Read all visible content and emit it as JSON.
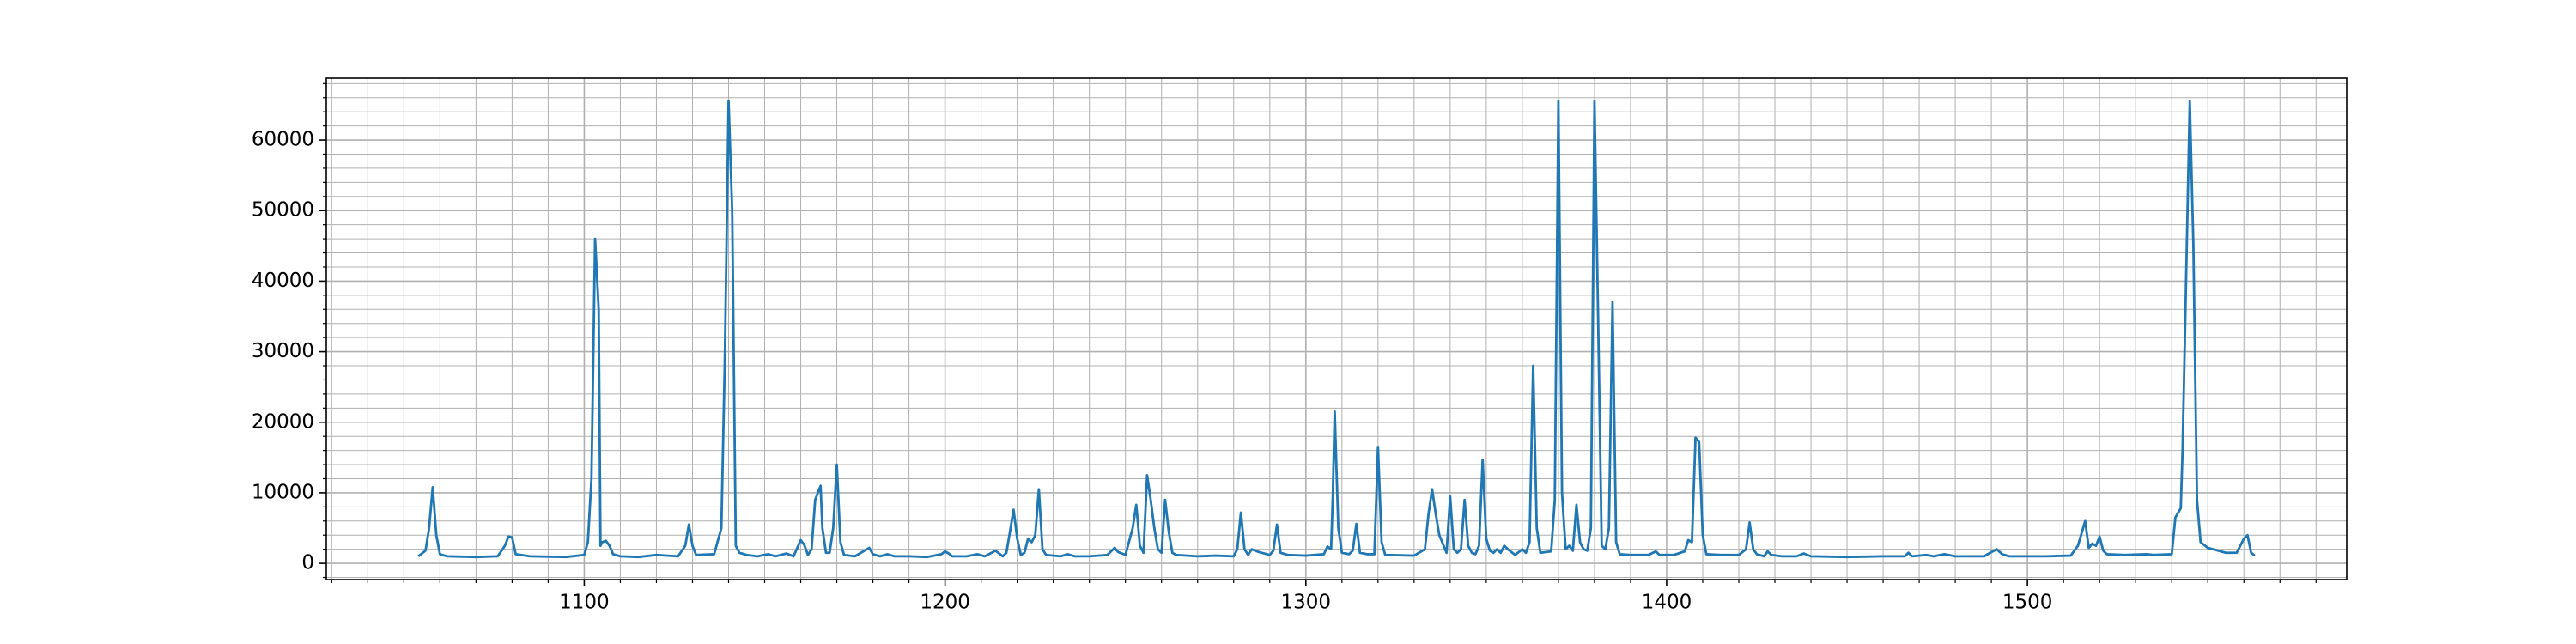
{
  "chart_data": {
    "type": "line",
    "x": [
      1054,
      1056,
      1057,
      1058,
      1059,
      1060,
      1062,
      1070,
      1076,
      1078,
      1079,
      1080,
      1081,
      1085,
      1095,
      1100,
      1101,
      1102,
      1103,
      1104,
      1104.5,
      1105,
      1106,
      1107,
      1108,
      1110,
      1115,
      1120,
      1126,
      1128,
      1129,
      1130,
      1131,
      1136,
      1138,
      1139,
      1140,
      1141,
      1142,
      1143,
      1145,
      1148,
      1151,
      1153,
      1156,
      1158,
      1160,
      1161,
      1162,
      1163,
      1164,
      1165.5,
      1166,
      1167,
      1168,
      1169,
      1170,
      1171,
      1172,
      1175,
      1177,
      1179,
      1180,
      1182,
      1184,
      1186,
      1190,
      1195,
      1199,
      1200,
      1201,
      1202,
      1206,
      1209,
      1211,
      1214,
      1216,
      1217,
      1218,
      1219,
      1220,
      1221,
      1222,
      1223,
      1224,
      1225,
      1226,
      1227,
      1228,
      1232,
      1234,
      1236,
      1240,
      1245,
      1247,
      1248,
      1250,
      1252,
      1253,
      1254,
      1255,
      1256,
      1257,
      1258,
      1259,
      1260,
      1261,
      1262,
      1263,
      1264,
      1270,
      1275,
      1280,
      1281,
      1282,
      1283,
      1284,
      1285,
      1287,
      1290,
      1291,
      1292,
      1293,
      1295,
      1300,
      1305,
      1306,
      1307,
      1307.5,
      1308,
      1309,
      1310,
      1312,
      1313,
      1314,
      1315,
      1317,
      1319,
      1320,
      1321,
      1322,
      1330,
      1333,
      1334,
      1335,
      1336,
      1337,
      1339,
      1340,
      1341,
      1342,
      1343,
      1344,
      1345,
      1346,
      1347,
      1348,
      1349,
      1350,
      1351,
      1352,
      1353,
      1354,
      1355,
      1356,
      1358,
      1360,
      1361,
      1362,
      1363,
      1364,
      1365,
      1368,
      1369,
      1370,
      1371,
      1372,
      1373,
      1374,
      1375,
      1376,
      1377,
      1378,
      1379,
      1380,
      1381,
      1382,
      1383,
      1384,
      1385,
      1386,
      1387,
      1390,
      1395,
      1397,
      1398,
      1402,
      1405,
      1406,
      1407,
      1408,
      1409,
      1410,
      1411,
      1415,
      1420,
      1422,
      1423,
      1424,
      1425,
      1427,
      1428,
      1429,
      1432,
      1436,
      1438,
      1440,
      1450,
      1460,
      1466,
      1467,
      1468,
      1472,
      1474,
      1477,
      1480,
      1488,
      1490,
      1491.5,
      1493,
      1495,
      1505,
      1512,
      1514,
      1516,
      1517,
      1518,
      1519,
      1520,
      1521,
      1522,
      1527,
      1533,
      1535,
      1540,
      1541,
      1542.5,
      1543,
      1545,
      1546,
      1547,
      1548,
      1550,
      1555,
      1558,
      1560,
      1561,
      1562,
      1563
    ],
    "series": [
      {
        "color": "#1f77b4",
        "values": [
          1000,
          1800,
          5000,
          10800,
          4000,
          1300,
          1000,
          900,
          1000,
          2500,
          3800,
          3700,
          1300,
          1000,
          900,
          1200,
          3000,
          12000,
          46000,
          36000,
          2500,
          3000,
          3200,
          2500,
          1300,
          1000,
          900,
          1200,
          1000,
          2500,
          5500,
          2500,
          1200,
          1300,
          5000,
          30000,
          65500,
          50000,
          2500,
          1500,
          1200,
          1000,
          1300,
          1000,
          1400,
          1000,
          3300,
          2600,
          1200,
          2000,
          9000,
          11000,
          5000,
          1500,
          1500,
          5000,
          14000,
          3000,
          1200,
          1000,
          1600,
          2200,
          1300,
          1000,
          1300,
          1000,
          1000,
          900,
          1300,
          1700,
          1400,
          1000,
          1000,
          1300,
          1000,
          1800,
          1000,
          1500,
          4500,
          7600,
          3500,
          1200,
          1500,
          3500,
          3000,
          4000,
          10500,
          2000,
          1200,
          1000,
          1300,
          1000,
          1000,
          1200,
          2200,
          1600,
          1200,
          5000,
          8300,
          2500,
          1500,
          12500,
          9000,
          5000,
          2000,
          1500,
          9000,
          4500,
          1500,
          1200,
          1000,
          1100,
          1000,
          2000,
          7200,
          2000,
          1200,
          2000,
          1600,
          1200,
          1800,
          5500,
          1500,
          1200,
          1100,
          1300,
          2400,
          2000,
          10000,
          21500,
          5000,
          1500,
          1300,
          1800,
          5600,
          1500,
          1300,
          1300,
          16500,
          3000,
          1200,
          1100,
          2000,
          7000,
          10500,
          7000,
          4000,
          1500,
          9500,
          2000,
          1500,
          2000,
          9000,
          2500,
          1500,
          1300,
          2500,
          14700,
          3500,
          1800,
          1500,
          2000,
          1500,
          2500,
          2000,
          1200,
          2000,
          1500,
          3000,
          28000,
          5000,
          1500,
          1700,
          9000,
          65500,
          10000,
          2000,
          2500,
          1800,
          8300,
          3000,
          2000,
          1800,
          5000,
          65500,
          35000,
          2500,
          2000,
          5000,
          37000,
          3000,
          1300,
          1200,
          1200,
          1700,
          1200,
          1200,
          1700,
          3300,
          3000,
          17800,
          17200,
          4000,
          1300,
          1200,
          1200,
          2000,
          5800,
          2000,
          1300,
          1000,
          1700,
          1200,
          1000,
          1000,
          1400,
          1000,
          900,
          1000,
          1000,
          1500,
          1000,
          1200,
          1000,
          1300,
          1000,
          1000,
          1600,
          2000,
          1300,
          1000,
          1000,
          1100,
          2500,
          6000,
          2200,
          2800,
          2500,
          3800,
          1800,
          1300,
          1200,
          1300,
          1200,
          1300,
          6500,
          7800,
          16000,
          65500,
          45000,
          9000,
          3000,
          2200,
          1500,
          1500,
          3500,
          4000,
          1500,
          1100
        ]
      }
    ],
    "xlim": [
      1028.5,
      1588.5
    ],
    "ylim": [
      -2300,
      68770
    ],
    "xticks": [
      1100,
      1200,
      1300,
      1400,
      1500
    ],
    "yticks": [
      0,
      10000,
      20000,
      30000,
      40000,
      50000,
      60000
    ],
    "grid": true,
    "minor_grid": true,
    "minor_divisions": {
      "x": 10,
      "y": 5
    }
  }
}
